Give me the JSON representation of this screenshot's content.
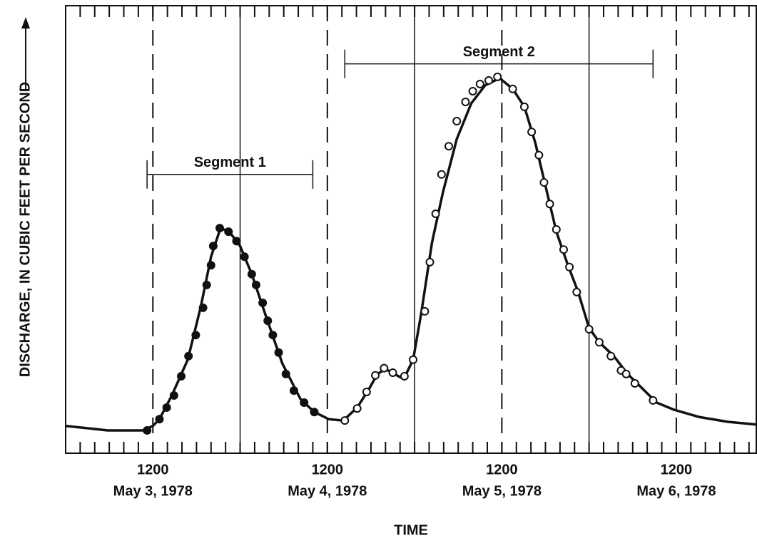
{
  "chart_data": {
    "type": "line",
    "x_label": "TIME",
    "y_label": "DISCHARGE, IN CUBIC FEET PER SECOND",
    "xlim": [
      0,
      95
    ],
    "ylim": [
      0,
      100
    ],
    "xticks": [
      {
        "value": 12,
        "label": "1200"
      },
      {
        "value": 36,
        "label": "1200"
      },
      {
        "value": 60,
        "label": "1200"
      },
      {
        "value": 84,
        "label": "1200"
      }
    ],
    "xtick_dates": [
      "May 3, 1978",
      "May 4, 1978",
      "May 5, 1978",
      "May 6, 1978"
    ],
    "xminor_ticks": [
      2,
      4,
      6,
      8,
      10,
      12,
      14,
      16,
      18,
      20,
      22,
      24,
      26,
      28,
      30,
      32,
      34,
      36,
      38,
      40,
      42,
      44,
      46,
      48,
      50,
      52,
      54,
      56,
      58,
      60,
      62,
      64,
      66,
      68,
      70,
      72,
      74,
      76,
      78,
      80,
      82,
      84,
      86,
      88,
      90,
      92,
      94
    ],
    "day_lines": [
      24,
      48,
      72
    ],
    "series": [
      {
        "marker": "none",
        "color": "#111111",
        "x": [
          0,
          5.8,
          10.7,
          12,
          12.9,
          14.6,
          16.8,
          18.6,
          20.0,
          21.3,
          22.5,
          24.0,
          25.6,
          27.6,
          29.8,
          32.3,
          34.2,
          36.2,
          38.2,
          40.1,
          41.6,
          42.9,
          44.0,
          45.2,
          46.5,
          47.8,
          48.9,
          50.4,
          51.9,
          53.8,
          55.8,
          57.7,
          59.7,
          61.5,
          63.1,
          64.6,
          66.1,
          67.5,
          69.0,
          70.5,
          72.0,
          73.4,
          75.4,
          77.3,
          79.3,
          81.3,
          83.7,
          87.1,
          91.1,
          95
        ],
        "values": [
          6.1,
          5.1,
          5.1,
          6.1,
          7.6,
          12.9,
          20.9,
          32.8,
          43.9,
          50.3,
          49.5,
          46.3,
          40.0,
          30.4,
          20.1,
          12.1,
          9.2,
          7.6,
          7.3,
          10.2,
          14.0,
          17.7,
          18.8,
          17.7,
          16.6,
          20.9,
          31.2,
          47.1,
          58.3,
          70.2,
          78.2,
          82.2,
          83.8,
          81.4,
          77.4,
          69.4,
          59.1,
          49.5,
          42.4,
          36.0,
          28.0,
          24.8,
          21.7,
          17.7,
          14.5,
          11.3,
          9.7,
          8.1,
          7.0,
          6.4
        ]
      },
      {
        "name": "Segment 1",
        "marker": "filled",
        "color": "#111111",
        "span": [
          11.2,
          34.0
        ],
        "level": 62.3,
        "x": [
          11.2,
          12.9,
          13.9,
          14.9,
          15.9,
          16.9,
          17.9,
          18.9,
          19.4,
          20.0,
          20.3,
          21.2,
          22.4,
          23.5,
          24.6,
          25.6,
          26.2,
          27.1,
          27.8,
          28.5,
          29.3,
          30.3,
          31.4,
          32.8,
          34.2
        ],
        "values": [
          5.1,
          7.6,
          10.2,
          12.9,
          17.2,
          21.7,
          26.4,
          32.5,
          37.6,
          42.0,
          46.3,
          50.3,
          49.5,
          47.4,
          43.9,
          40.0,
          37.6,
          33.6,
          29.6,
          26.4,
          22.5,
          17.7,
          14.0,
          11.3,
          9.2
        ]
      },
      {
        "name": "Segment 2",
        "marker": "open",
        "color": "#111111",
        "span": [
          38.4,
          80.8
        ],
        "level": 87,
        "x": [
          38.4,
          40.1,
          41.4,
          42.6,
          43.8,
          45.0,
          46.6,
          47.8,
          49.4,
          50.1,
          50.9,
          51.7,
          52.7,
          53.8,
          55.0,
          56.0,
          57.0,
          58.2,
          59.4,
          61.5,
          63.1,
          64.1,
          65.1,
          65.8,
          66.6,
          67.5,
          68.5,
          69.3,
          70.3,
          72.0,
          73.4,
          75.0,
          76.4,
          77.1,
          78.3,
          80.8
        ],
        "values": [
          7.3,
          10.0,
          13.7,
          17.4,
          19.0,
          18.0,
          17.2,
          20.9,
          31.7,
          42.7,
          53.5,
          62.3,
          68.6,
          74.2,
          78.5,
          80.9,
          82.5,
          83.3,
          84.1,
          81.4,
          77.4,
          71.8,
          66.6,
          60.5,
          55.7,
          50.0,
          45.5,
          41.6,
          36.0,
          27.7,
          24.8,
          21.7,
          18.5,
          17.7,
          15.6,
          11.8
        ]
      }
    ]
  }
}
